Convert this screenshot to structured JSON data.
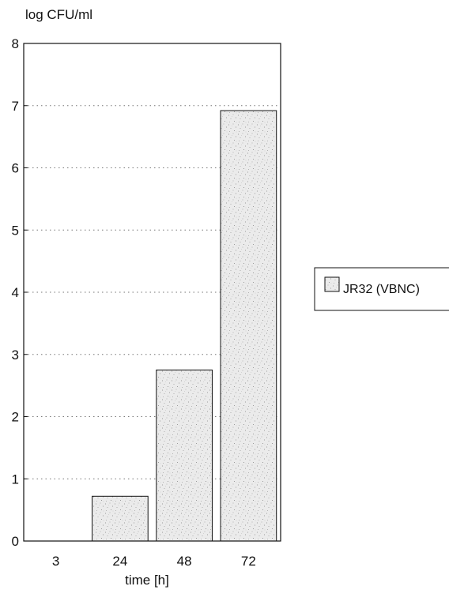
{
  "chart_data": {
    "type": "bar",
    "categories": [
      "3",
      "24",
      "48",
      "72"
    ],
    "series": [
      {
        "name": "JR32 (VBNC)",
        "values": [
          0,
          0.72,
          2.75,
          6.92
        ]
      }
    ],
    "title": "",
    "xlabel": "time [h]",
    "ylabel": "log CFU/ml",
    "ylim": [
      0,
      8
    ],
    "yticks": [
      "0",
      "1",
      "2",
      "3",
      "4",
      "5",
      "6",
      "7",
      "8"
    ],
    "grid": true,
    "grid_style": "dotted horizontal",
    "legend_position": "right",
    "colors": {
      "bar_fill": "#e6e6e6",
      "bar_stipple": "#8a8a8a",
      "axis": "#111111",
      "grid": "#777777",
      "background": "#ffffff"
    }
  }
}
